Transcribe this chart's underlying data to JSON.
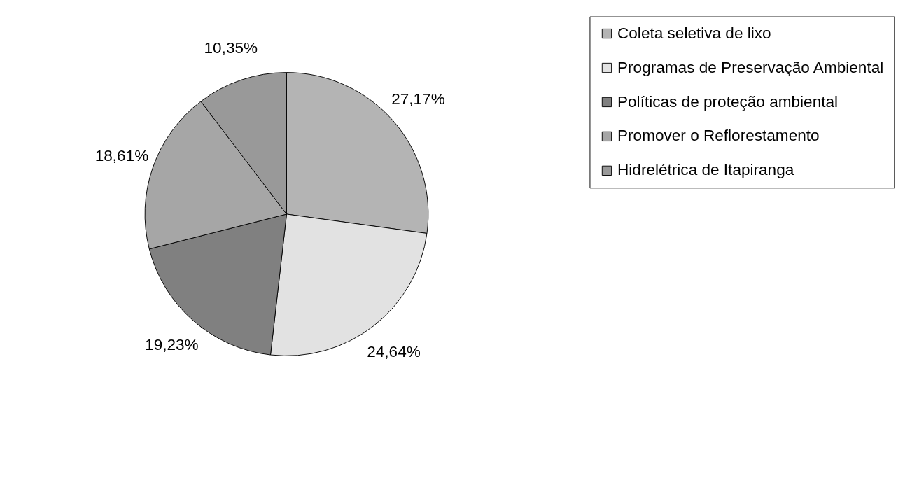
{
  "chart_data": {
    "type": "pie",
    "categories": [
      "Coleta seletiva de lixo",
      "Programas de Preservação Ambiental",
      "Políticas de proteção ambiental",
      "Promover o Reflorestamento",
      "Hidrelétrica de Itapiranga"
    ],
    "values": [
      27.17,
      24.64,
      19.23,
      18.61,
      10.35
    ],
    "value_labels": [
      "27,17%",
      "24,64%",
      "19,23%",
      "18,61%",
      "10,35%"
    ],
    "colors": [
      "#b4b4b4",
      "#e2e2e2",
      "#808080",
      "#a6a6a6",
      "#999999"
    ],
    "legend": "right"
  }
}
